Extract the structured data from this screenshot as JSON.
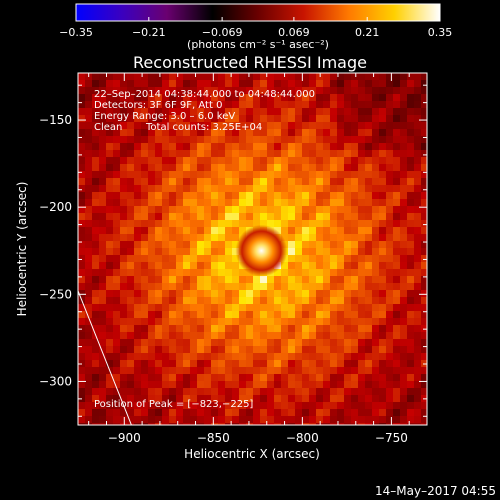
{
  "chart_data": {
    "type": "heatmap",
    "title": "Reconstructed RHESSI Image",
    "xlabel": "Heliocentric X (arcsec)",
    "ylabel": "Heliocentric Y (arcsec)",
    "xlim": [
      -926,
      -730
    ],
    "ylim": [
      -325,
      -123
    ],
    "x_ticks": [
      {
        "value": -900,
        "label": "−900"
      },
      {
        "value": -850,
        "label": "−850"
      },
      {
        "value": -800,
        "label": "−800"
      },
      {
        "value": -750,
        "label": "−750"
      }
    ],
    "y_ticks": [
      {
        "value": -150,
        "label": "−150"
      },
      {
        "value": -200,
        "label": "−200"
      },
      {
        "value": -250,
        "label": "−250"
      },
      {
        "value": -300,
        "label": "−300"
      }
    ],
    "colorbar": {
      "min": -0.35,
      "max": 0.35,
      "tick_values": [
        -0.35,
        -0.21,
        -0.069,
        0.069,
        0.21,
        0.35
      ],
      "tick_labels": [
        "−0.35",
        "−0.21",
        "−0.069",
        "0.069",
        "0.21",
        "0.35"
      ],
      "units_label": "(photons cm⁻² s⁻¹ asec⁻²)",
      "colormap": [
        "#0000ff",
        "#3a00c0",
        "#6a0070",
        "#000000",
        "#6a0000",
        "#c81400",
        "#ff7a00",
        "#ffd000",
        "#ffffff"
      ]
    },
    "annotations": {
      "time_range": "22–Sep–2014 04:38:44.000 to 04:48:44.000",
      "detectors": "Detectors: 3F 6F 9F, Att 0",
      "energy_range": "Energy Range: 3.0 – 6.0 keV",
      "clean_method": "Clean",
      "total_counts": "Total counts: 3.25E+04",
      "peak_position": "Position of Peak = [−823,−225]"
    },
    "peak": {
      "x": -823,
      "y": -225,
      "value": 0.35
    },
    "limb_line": [
      {
        "x": -926,
        "y": -248
      },
      {
        "x": -896,
        "y": -325
      }
    ],
    "timestamp": "14–May–2017 04:55"
  }
}
